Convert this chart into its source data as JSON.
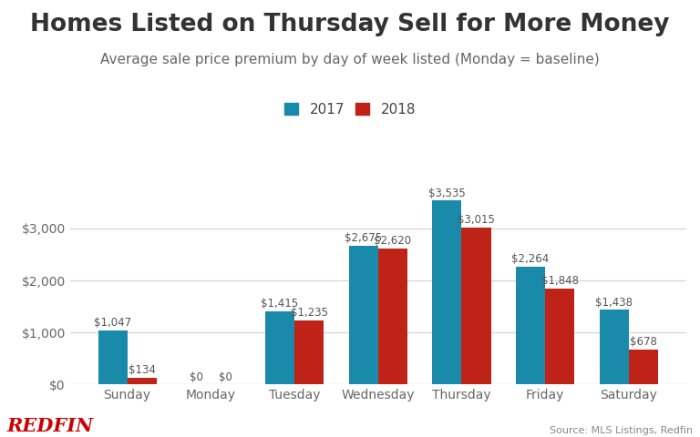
{
  "title": "Homes Listed on Thursday Sell for More Money",
  "subtitle": "Average sale price premium by day of week listed (Monday = baseline)",
  "categories": [
    "Sunday",
    "Monday",
    "Tuesday",
    "Wednesday",
    "Thursday",
    "Friday",
    "Saturday"
  ],
  "values_2017": [
    1047,
    0,
    1415,
    2675,
    3535,
    2264,
    1438
  ],
  "values_2018": [
    134,
    0,
    1235,
    2620,
    3015,
    1848,
    678
  ],
  "labels_2017": [
    "$1,047",
    "$0",
    "$1,415",
    "$2,675",
    "$3,535",
    "$2,264",
    "$1,438"
  ],
  "labels_2018": [
    "$134",
    "$0",
    "$1,235",
    "$2,620",
    "$3,015",
    "$1,848",
    "$678"
  ],
  "color_2017": "#1a8aab",
  "color_2018": "#bf2318",
  "background_color": "#ffffff",
  "ylim": [
    0,
    4200
  ],
  "yticks": [
    0,
    1000,
    2000,
    3000
  ],
  "ytick_labels": [
    "$0",
    "$1,000",
    "$2,000",
    "$3,000"
  ],
  "legend_2017": "2017",
  "legend_2018": "2018",
  "source_text": "Source: MLS Listings, Redfin",
  "redfin_text": "REDFIN",
  "redfin_color": "#cc0000",
  "title_fontsize": 19,
  "subtitle_fontsize": 11,
  "bar_width": 0.35,
  "label_fontsize": 8.5,
  "tick_fontsize": 10,
  "grid_color": "#d8d8d8"
}
